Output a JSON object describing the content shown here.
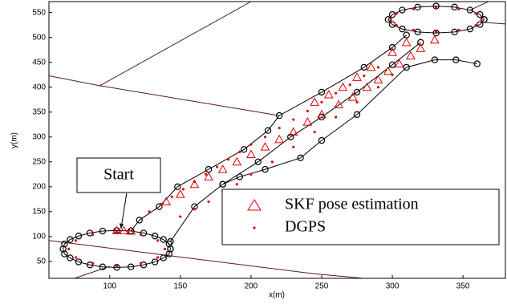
{
  "chart_data": {
    "type": "line",
    "xlabel": "x(m)",
    "ylabel": "y(m)",
    "xlim": [
      57,
      380
    ],
    "ylim": [
      16,
      572
    ],
    "xticks": [
      100,
      150,
      200,
      250,
      300,
      350
    ],
    "yticks": [
      50,
      100,
      150,
      200,
      250,
      300,
      350,
      400,
      450,
      500,
      550
    ],
    "legend": "lower right",
    "annotations": [
      {
        "text": "Start",
        "x": 108,
        "y": 112
      }
    ],
    "series": [
      {
        "color": "#5a1a1a",
        "marker": "none",
        "line": true,
        "x": [
          57,
          93,
          220,
          null,
          93,
          200,
          null,
          57,
          245,
          null,
          245,
          280,
          null,
          75,
          100,
          null,
          355,
          368,
          null,
          365,
          380
        ],
        "y": [
          423,
          403,
          343,
          null,
          403,
          572,
          null,
          92,
          25,
          null,
          25,
          16,
          null,
          16,
          40,
          null,
          555,
          572,
          null,
          530,
          527
        ]
      },
      {
        "color": "#000000",
        "marker": "circle",
        "line": true,
        "x": [
          143,
          142,
          138,
          132,
          124,
          115,
          105,
          95,
          86,
          78,
          72,
          68,
          67,
          68,
          72,
          78,
          86,
          95,
          105,
          115,
          124,
          132,
          138,
          142,
          143,
          null,
          115,
          121,
          135,
          148,
          170,
          195,
          212,
          220,
          250,
          280,
          300,
          310,
          null,
          143,
          160,
          180,
          205,
          228,
          250,
          275,
          300,
          320,
          null,
          180,
          192,
          210,
          235,
          250,
          275,
          310,
          330,
          345,
          360,
          null,
          365,
          362,
          355,
          344,
          331,
          318,
          307,
          300,
          297,
          300,
          307,
          318,
          331,
          344,
          355,
          362,
          365
        ],
        "y": [
          75,
          85,
          94,
          101,
          107,
          111,
          112,
          111,
          107,
          101,
          94,
          85,
          75,
          65,
          57,
          49,
          43,
          39,
          38,
          39,
          43,
          49,
          57,
          65,
          75,
          null,
          111,
          133,
          160,
          200,
          235,
          275,
          313,
          343,
          390,
          440,
          480,
          505,
          null,
          90,
          160,
          205,
          250,
          300,
          340,
          390,
          445,
          490,
          null,
          205,
          220,
          235,
          258,
          293,
          345,
          440,
          455,
          455,
          447,
          null,
          536,
          546,
          555,
          561,
          563,
          561,
          555,
          546,
          536,
          526,
          517,
          511,
          509,
          511,
          517,
          526,
          536
        ]
      },
      {
        "name": "SKF pose estimation",
        "color": "#e00000",
        "marker": "triangle",
        "line": false,
        "x": [
          105,
          110,
          115,
          140,
          150,
          160,
          170,
          180,
          190,
          200,
          210,
          220,
          230,
          240,
          250,
          262,
          272,
          282,
          290,
          297,
          305,
          313,
          320,
          330,
          245,
          255,
          265,
          275,
          285,
          300,
          310
        ],
        "y": [
          112,
          112,
          111,
          170,
          185,
          205,
          220,
          235,
          250,
          265,
          280,
          295,
          310,
          330,
          345,
          365,
          380,
          400,
          415,
          432,
          447,
          463,
          478,
          495,
          370,
          385,
          400,
          420,
          440,
          470,
          490
        ]
      },
      {
        "name": "DGPS",
        "color": "#e00000",
        "marker": "dot",
        "line": false,
        "x": [
          139,
          134,
          122,
          105,
          88,
          76,
          71,
          76,
          88,
          105,
          122,
          134,
          128,
          136,
          144,
          152,
          160,
          168,
          176,
          184,
          192,
          200,
          210,
          220,
          230,
          240,
          250,
          260,
          270,
          280,
          290,
          150,
          160,
          170,
          180,
          190,
          200,
          215,
          230,
          245,
          260,
          275,
          290,
          300,
          363,
          359,
          347,
          331,
          315,
          303,
          299,
          303,
          315,
          331,
          347,
          359
        ],
        "y": [
          75,
          92,
          104,
          109,
          104,
          92,
          75,
          58,
          46,
          41,
          46,
          58,
          150,
          165,
          180,
          195,
          210,
          225,
          240,
          255,
          270,
          285,
          300,
          318,
          335,
          352,
          370,
          388,
          405,
          423,
          440,
          140,
          155,
          170,
          190,
          205,
          225,
          250,
          280,
          310,
          340,
          370,
          400,
          425,
          536,
          548,
          557,
          560,
          557,
          548,
          536,
          524,
          515,
          512,
          515,
          524
        ]
      }
    ]
  }
}
